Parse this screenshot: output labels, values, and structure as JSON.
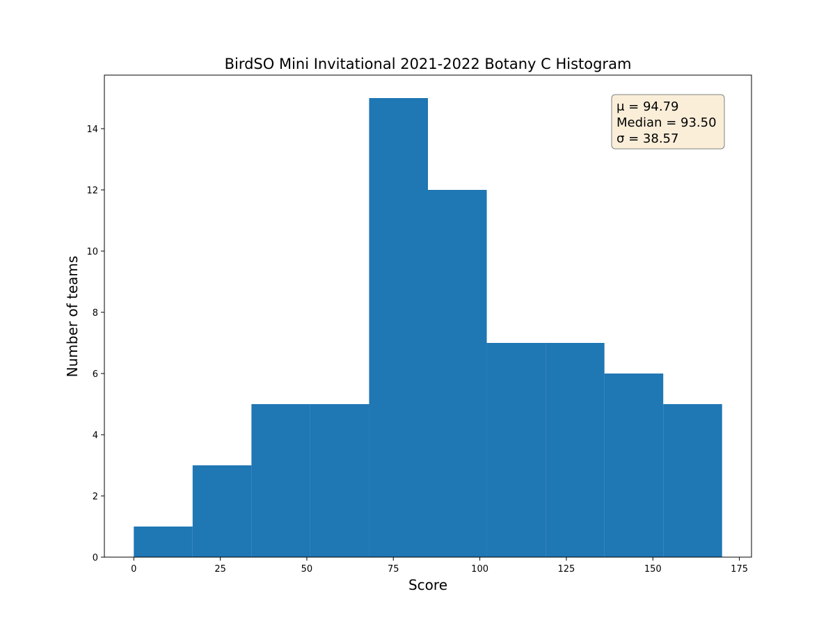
{
  "chart_data": {
    "type": "bar",
    "title": "BirdSO Mini Invitational 2021-2022 Botany C Histogram",
    "xlabel": "Score",
    "ylabel": "Number of teams",
    "xlim": [
      -8.5,
      178.5
    ],
    "ylim": [
      0,
      15.75
    ],
    "xticks": [
      0,
      25,
      50,
      75,
      100,
      125,
      150,
      175
    ],
    "yticks": [
      0,
      2,
      4,
      6,
      8,
      10,
      12,
      14
    ],
    "bins": [
      {
        "start": 0,
        "end": 17,
        "count": 1
      },
      {
        "start": 17,
        "end": 34,
        "count": 3
      },
      {
        "start": 34,
        "end": 51,
        "count": 5
      },
      {
        "start": 51,
        "end": 68,
        "count": 5
      },
      {
        "start": 68,
        "end": 85,
        "count": 15
      },
      {
        "start": 85,
        "end": 102,
        "count": 12
      },
      {
        "start": 102,
        "end": 119,
        "count": 7
      },
      {
        "start": 119,
        "end": 136,
        "count": 7
      },
      {
        "start": 136,
        "end": 153,
        "count": 6
      },
      {
        "start": 153,
        "end": 170,
        "count": 5
      }
    ],
    "bar_color": "#1f77b4",
    "grid": false,
    "stats_box": {
      "mean_label": "μ = 94.79",
      "median_label": "Median = 93.50",
      "sd_label": "σ = 38.57",
      "placement": "top-right",
      "background": "#f5deb3",
      "border": "#808080"
    }
  }
}
